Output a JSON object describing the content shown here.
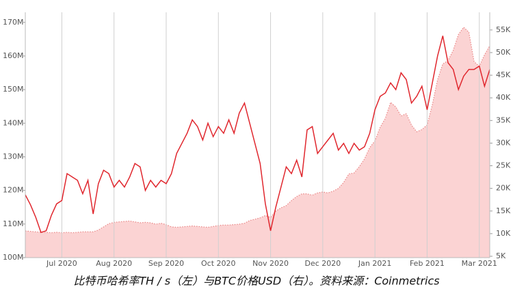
{
  "chart_data": {
    "type": "line",
    "title": "比特币哈希率TH / s（左）与BTC价格USD（右）。资料来源：Coinmetrics",
    "categories": [
      null,
      null,
      null,
      null,
      null,
      null,
      null,
      "Jul 2020",
      null,
      null,
      null,
      null,
      null,
      null,
      null,
      null,
      null,
      "Aug 2020",
      null,
      null,
      null,
      null,
      null,
      null,
      null,
      null,
      null,
      "Sep 2020",
      null,
      null,
      null,
      null,
      null,
      null,
      null,
      null,
      null,
      "Oct 2020",
      null,
      null,
      null,
      null,
      null,
      null,
      null,
      null,
      null,
      "Nov 2020",
      null,
      null,
      null,
      null,
      null,
      null,
      null,
      null,
      null,
      "Dec 2020",
      null,
      null,
      null,
      null,
      null,
      null,
      null,
      null,
      null,
      "Jan 2021",
      null,
      null,
      null,
      null,
      null,
      null,
      null,
      null,
      null,
      "Feb 2021",
      null,
      null,
      null,
      null,
      null,
      null,
      null,
      null,
      null,
      "Mar 2021",
      null,
      null
    ],
    "series": [
      {
        "type": "line",
        "color": "#e0262d",
        "values": [
          118.7,
          115.7,
          112,
          107.5,
          108,
          112.6,
          116,
          117,
          125,
          124,
          123,
          119,
          123,
          113,
          122,
          126,
          125,
          121,
          123,
          121,
          124,
          128,
          127,
          120,
          123,
          121,
          123,
          122,
          125,
          131,
          134,
          137,
          141,
          139,
          135,
          140,
          136,
          139,
          137,
          141,
          137,
          143,
          146,
          140,
          134,
          128,
          116,
          108,
          115,
          121,
          127,
          125,
          129,
          124,
          138,
          139,
          131,
          133,
          135,
          137,
          132,
          134,
          131,
          134,
          132,
          133,
          137,
          144,
          148,
          149,
          152,
          150,
          155,
          153,
          146,
          148,
          151,
          144,
          152,
          160,
          166,
          158,
          156,
          150,
          154,
          156,
          156,
          157,
          151,
          156
        ]
      },
      {
        "type": "area",
        "axis": "y2",
        "color": "#fbd3d3",
        "line_color": "#e98585",
        "values": [
          10.6,
          10.5,
          10.4,
          10.3,
          10.3,
          10.2,
          10.3,
          10.2,
          10.3,
          10.2,
          10.3,
          10.4,
          10.4,
          10.4,
          10.8,
          11.5,
          12.2,
          12.5,
          12.6,
          12.7,
          12.8,
          12.6,
          12.4,
          12.5,
          12.4,
          12.1,
          12.3,
          12.0,
          11.5,
          11.4,
          11.5,
          11.6,
          11.7,
          11.6,
          11.5,
          11.4,
          11.6,
          11.8,
          11.9,
          11.9,
          12.0,
          12.1,
          12.3,
          12.9,
          13.2,
          13.5,
          14.0,
          13.6,
          15.0,
          15.7,
          16.2,
          17.3,
          18.2,
          18.8,
          18.8,
          18.5,
          19.0,
          19.2,
          19.0,
          19.4,
          20.0,
          21.3,
          23.2,
          23.4,
          24.8,
          26.5,
          29.0,
          30.5,
          33.5,
          35.5,
          39.0,
          38.0,
          36.0,
          36.5,
          34.0,
          32.5,
          33.0,
          34.0,
          38.5,
          44.0,
          47.5,
          48.2,
          50.5,
          54.0,
          55.6,
          54.5,
          48.0,
          47.0,
          49.5,
          51.5
        ]
      }
    ],
    "ylim": [
      100,
      173
    ],
    "yticks": [
      {
        "value": 100,
        "label": "100M"
      },
      {
        "value": 110,
        "label": "110M"
      },
      {
        "value": 120,
        "label": "120M"
      },
      {
        "value": 130,
        "label": "130M"
      },
      {
        "value": 140,
        "label": "140M"
      },
      {
        "value": 150,
        "label": "150M"
      },
      {
        "value": 160,
        "label": "160M"
      },
      {
        "value": 170,
        "label": "170M"
      }
    ],
    "y2lim": [
      4.7,
      58.9
    ],
    "y2ticks": [
      {
        "value": 5,
        "label": "5K"
      },
      {
        "value": 10,
        "label": "10K"
      },
      {
        "value": 15,
        "label": "15K"
      },
      {
        "value": 20,
        "label": "20K"
      },
      {
        "value": 25,
        "label": "25K"
      },
      {
        "value": 30,
        "label": "30K"
      },
      {
        "value": 35,
        "label": "35K"
      },
      {
        "value": 40,
        "label": "40K"
      },
      {
        "value": 45,
        "label": "45K"
      },
      {
        "value": 50,
        "label": "50K"
      },
      {
        "value": 55,
        "label": "55K"
      }
    ],
    "grid": true
  }
}
